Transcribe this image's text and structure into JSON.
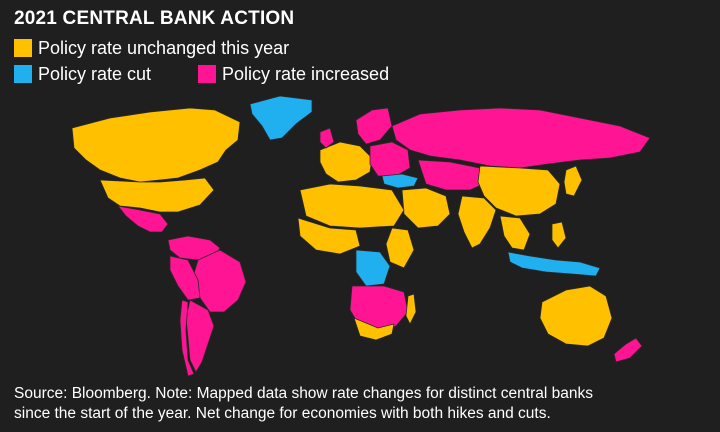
{
  "title": "2021 CENTRAL BANK ACTION",
  "legend": [
    {
      "key": "unchanged",
      "label": "Policy rate unchanged this year",
      "color": "#ffc000"
    },
    {
      "key": "cut",
      "label": "Policy rate cut",
      "color": "#20b0f0"
    },
    {
      "key": "increased",
      "label": "Policy rate increased",
      "color": "#ff1493"
    }
  ],
  "colors": {
    "background": "#1f1f1f",
    "no_data": "#161616",
    "border": "#3a3a3a"
  },
  "footnote": {
    "line1": "Source: Bloomberg. Note: Mapped data show rate changes for distinct central banks",
    "line2": "since the start of the year. Net change for economies with both hikes and cuts."
  },
  "regions": [
    {
      "name": "Canada",
      "status": "unchanged"
    },
    {
      "name": "United States",
      "status": "unchanged"
    },
    {
      "name": "Mexico",
      "status": "increased"
    },
    {
      "name": "Greenland",
      "status": "cut"
    },
    {
      "name": "Brazil",
      "status": "increased"
    },
    {
      "name": "Argentina",
      "status": "increased"
    },
    {
      "name": "Chile",
      "status": "increased"
    },
    {
      "name": "Russia",
      "status": "increased"
    },
    {
      "name": "Turkey",
      "status": "cut"
    },
    {
      "name": "India",
      "status": "unchanged"
    },
    {
      "name": "Australia",
      "status": "unchanged"
    },
    {
      "name": "Indonesia",
      "status": "cut"
    },
    {
      "name": "New Zealand",
      "status": "increased"
    },
    {
      "name": "South Africa",
      "status": "unchanged"
    },
    {
      "name": "DR Congo",
      "status": "cut"
    }
  ]
}
